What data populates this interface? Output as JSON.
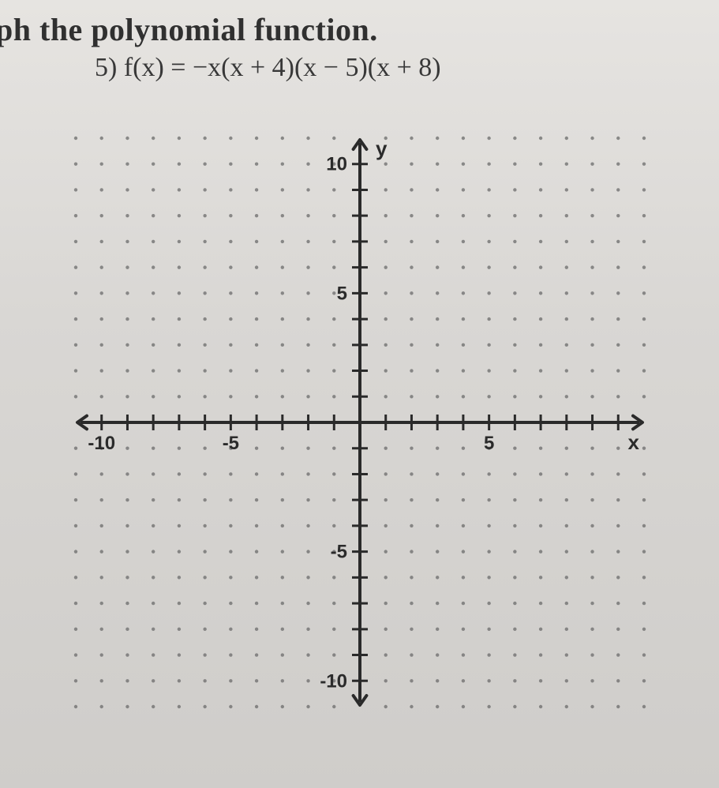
{
  "heading": "ph the polynomial function.",
  "problem": {
    "number": "5)",
    "expression": "f(x) = −x(x + 4)(x − 5)(x + 8)"
  },
  "graph": {
    "type": "cartesian-grid",
    "x_range": [
      -11,
      11
    ],
    "y_range": [
      -11,
      11
    ],
    "x_tick_step": 1,
    "y_tick_step": 1,
    "x_labels": [
      {
        "value": -10,
        "text": "-10"
      },
      {
        "value": -5,
        "text": "-5"
      },
      {
        "value": 5,
        "text": "5"
      }
    ],
    "y_labels": [
      {
        "value": 10,
        "text": "10"
      },
      {
        "value": 5,
        "text": "5"
      },
      {
        "value": -5,
        "text": "-5"
      },
      {
        "value": -10,
        "text": "-10"
      }
    ],
    "axis_x_label": "x",
    "axis_y_label": "y",
    "axis_color": "#2a2a2a",
    "grid_dot_color": "#6b6b6b",
    "background_color": "transparent",
    "axis_stroke_width": 4,
    "tick_length": 10,
    "dot_radius": 2.2,
    "label_fontsize": 24
  }
}
